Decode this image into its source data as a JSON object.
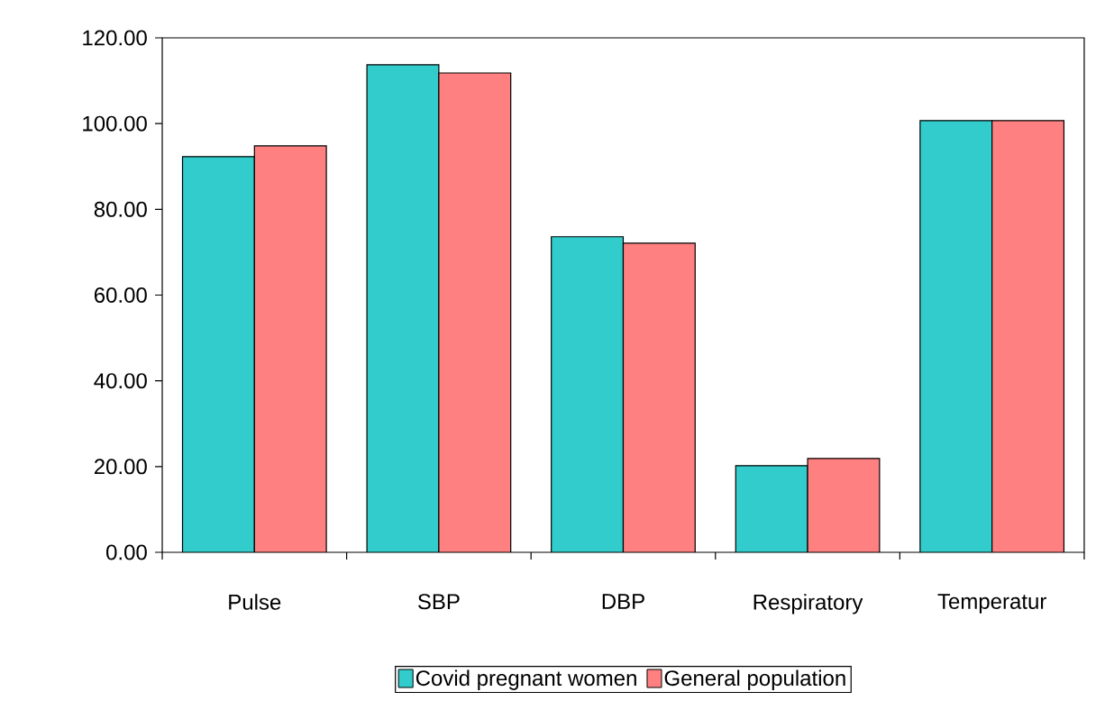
{
  "chart_data": {
    "type": "bar",
    "categories": [
      "Pulse",
      "SBP",
      "DBP",
      "Respiratory",
      "Temperatur"
    ],
    "series": [
      {
        "name": "Covid pregnant women",
        "color": "#33cccc",
        "values": [
          92.3,
          113.7,
          73.6,
          20.2,
          100.7
        ]
      },
      {
        "name": "General population",
        "color": "#ff8080",
        "values": [
          94.8,
          111.8,
          72.1,
          21.9,
          100.7
        ]
      }
    ],
    "ylim": [
      0,
      120
    ],
    "yticks": [
      {
        "value": 0,
        "label": "0.00"
      },
      {
        "value": 20,
        "label": "20.00"
      },
      {
        "value": 40,
        "label": "40.00"
      },
      {
        "value": 60,
        "label": "60.00"
      },
      {
        "value": 80,
        "label": "80.00"
      },
      {
        "value": 100,
        "label": "100.00"
      },
      {
        "value": 120,
        "label": "120.00"
      }
    ],
    "legend": "bottom"
  }
}
